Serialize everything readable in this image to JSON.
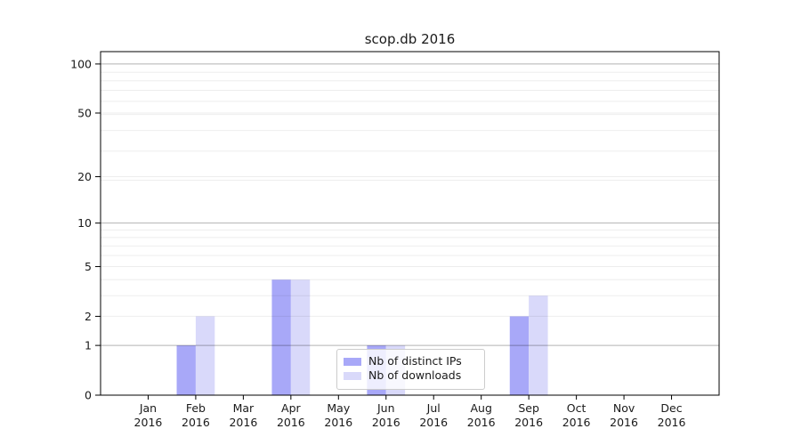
{
  "window_title": "scop.db 2016",
  "colors": {
    "background": "#ffffff",
    "axis": "#000000",
    "text": "#1a1a1a",
    "grid_minor": "rgba(0,0,0,0.07)",
    "grid_major": "rgba(0,0,0,0.30)",
    "legend_border": "#cccccc",
    "series_distinct_ips": "#a8a8f8",
    "series_downloads": "#d9d9fa"
  },
  "chart_data": {
    "type": "bar",
    "title": "scop.db 2016",
    "categories": [
      "Jan",
      "Feb",
      "Mar",
      "Apr",
      "May",
      "Jun",
      "Jul",
      "Aug",
      "Sep",
      "Oct",
      "Nov",
      "Dec"
    ],
    "x_year": "2016",
    "series": [
      {
        "name": "Nb of distinct IPs",
        "color": "#a8a8f8",
        "values": [
          0,
          1,
          0,
          4,
          0,
          1,
          0,
          0,
          2,
          0,
          0,
          0
        ]
      },
      {
        "name": "Nb of downloads",
        "color": "#d9d9fa",
        "values": [
          0,
          2,
          0,
          4,
          0,
          1,
          0,
          0,
          3,
          0,
          0,
          0
        ]
      }
    ],
    "xlabel": "",
    "ylabel": "",
    "yscale": "log1p",
    "yticks": [
      0,
      1,
      2,
      5,
      10,
      20,
      50,
      100
    ],
    "ylim": [
      0,
      119
    ],
    "grid": "both",
    "grid_minor_values": [
      2,
      3,
      4,
      5,
      6,
      7,
      8,
      9,
      19,
      20,
      29,
      39,
      49,
      50,
      59,
      69,
      79,
      89
    ],
    "grid_major_values": [
      1,
      10,
      100
    ],
    "legend": {
      "position": "lower center",
      "labels": [
        "Nb of distinct IPs",
        "Nb of downloads"
      ]
    }
  }
}
